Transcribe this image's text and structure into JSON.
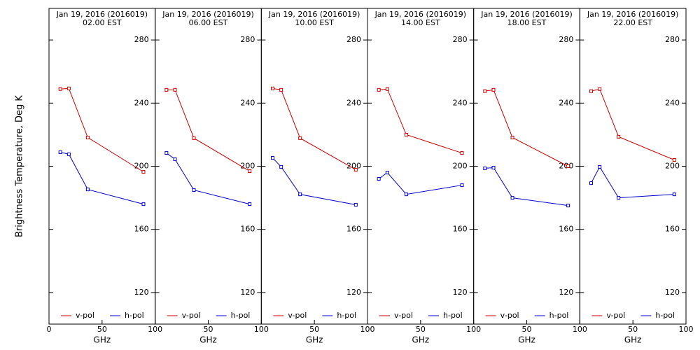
{
  "chart_data": [
    {
      "type": "line",
      "title": "Jan 19, 2016 (2016019)",
      "subtitle": "02.00 EST",
      "xlabel": "GHz",
      "ylabel": "Brightness Temperature, Deg K",
      "x": [
        10.65,
        18.7,
        36.5,
        89
      ],
      "xlim": [
        0,
        100
      ],
      "xticks": [
        0,
        50,
        100
      ],
      "ylim": [
        100,
        300
      ],
      "yticks": [
        120,
        160,
        200,
        240,
        280
      ],
      "legend": "bottom",
      "series": [
        {
          "name": "v-pol",
          "color": "#cc0000",
          "values": [
            248.9,
            249.3,
            218.2,
            196.4
          ]
        },
        {
          "name": "h-pol",
          "color": "#0000cc",
          "values": [
            208.9,
            207.6,
            185.3,
            176.0
          ]
        }
      ]
    },
    {
      "type": "line",
      "title": "Jan 19, 2016 (2016019)",
      "subtitle": "06.00 EST",
      "xlabel": "GHz",
      "x": [
        10.65,
        18.7,
        36.5,
        89
      ],
      "xlim": [
        0,
        100
      ],
      "xticks": [
        50,
        100
      ],
      "ylim": [
        100,
        300
      ],
      "yticks": [
        120,
        160,
        200,
        240,
        280
      ],
      "legend": "bottom",
      "series": [
        {
          "name": "v-pol",
          "color": "#cc0000",
          "values": [
            248.4,
            248.4,
            217.8,
            196.9
          ]
        },
        {
          "name": "h-pol",
          "color": "#0000cc",
          "values": [
            208.4,
            204.4,
            184.9,
            176.0
          ]
        }
      ]
    },
    {
      "type": "line",
      "title": "Jan 19, 2016 (2016019)",
      "subtitle": "10.00 EST",
      "xlabel": "GHz",
      "x": [
        10.65,
        18.7,
        36.5,
        89
      ],
      "xlim": [
        0,
        100
      ],
      "xticks": [
        50,
        100
      ],
      "ylim": [
        100,
        300
      ],
      "yticks": [
        120,
        160,
        200,
        240,
        280
      ],
      "legend": "bottom",
      "series": [
        {
          "name": "v-pol",
          "color": "#cc0000",
          "values": [
            249.3,
            248.4,
            217.8,
            197.8
          ]
        },
        {
          "name": "h-pol",
          "color": "#0000cc",
          "values": [
            205.3,
            199.6,
            182.2,
            175.6
          ]
        }
      ]
    },
    {
      "type": "line",
      "title": "Jan 19, 2016 (2016019)",
      "subtitle": "14.00 EST",
      "xlabel": "GHz",
      "x": [
        10.65,
        18.7,
        36.5,
        89
      ],
      "xlim": [
        0,
        100
      ],
      "xticks": [
        50,
        100
      ],
      "ylim": [
        100,
        300
      ],
      "yticks": [
        120,
        160,
        200,
        240,
        280
      ],
      "legend": "bottom",
      "series": [
        {
          "name": "v-pol",
          "color": "#cc0000",
          "values": [
            248.4,
            248.9,
            220.0,
            208.4
          ]
        },
        {
          "name": "h-pol",
          "color": "#0000cc",
          "values": [
            192.0,
            196.0,
            182.2,
            188.0
          ]
        }
      ]
    },
    {
      "type": "line",
      "title": "Jan 19, 2016 (2016019)",
      "subtitle": "18.00 EST",
      "xlabel": "GHz",
      "x": [
        10.65,
        18.7,
        36.5,
        89
      ],
      "xlim": [
        0,
        100
      ],
      "xticks": [
        50,
        100
      ],
      "ylim": [
        100,
        300
      ],
      "yticks": [
        120,
        160,
        200,
        240,
        280
      ],
      "legend": "bottom",
      "series": [
        {
          "name": "v-pol",
          "color": "#cc0000",
          "values": [
            247.6,
            248.4,
            218.2,
            200.0
          ]
        },
        {
          "name": "h-pol",
          "color": "#0000cc",
          "values": [
            198.7,
            199.1,
            180.0,
            175.1
          ]
        }
      ]
    },
    {
      "type": "line",
      "title": "Jan 19, 2016 (2016019)",
      "subtitle": "22.00 EST",
      "xlabel": "GHz",
      "x": [
        10.65,
        18.7,
        36.5,
        89
      ],
      "xlim": [
        0,
        100
      ],
      "xticks": [
        50,
        100
      ],
      "ylim": [
        100,
        300
      ],
      "yticks": [
        120,
        160,
        200,
        240,
        280
      ],
      "legend": "bottom",
      "series": [
        {
          "name": "v-pol",
          "color": "#cc0000",
          "values": [
            247.6,
            248.9,
            218.7,
            204.0
          ]
        },
        {
          "name": "h-pol",
          "color": "#0000cc",
          "values": [
            189.3,
            199.6,
            180.0,
            182.2
          ]
        }
      ]
    }
  ]
}
